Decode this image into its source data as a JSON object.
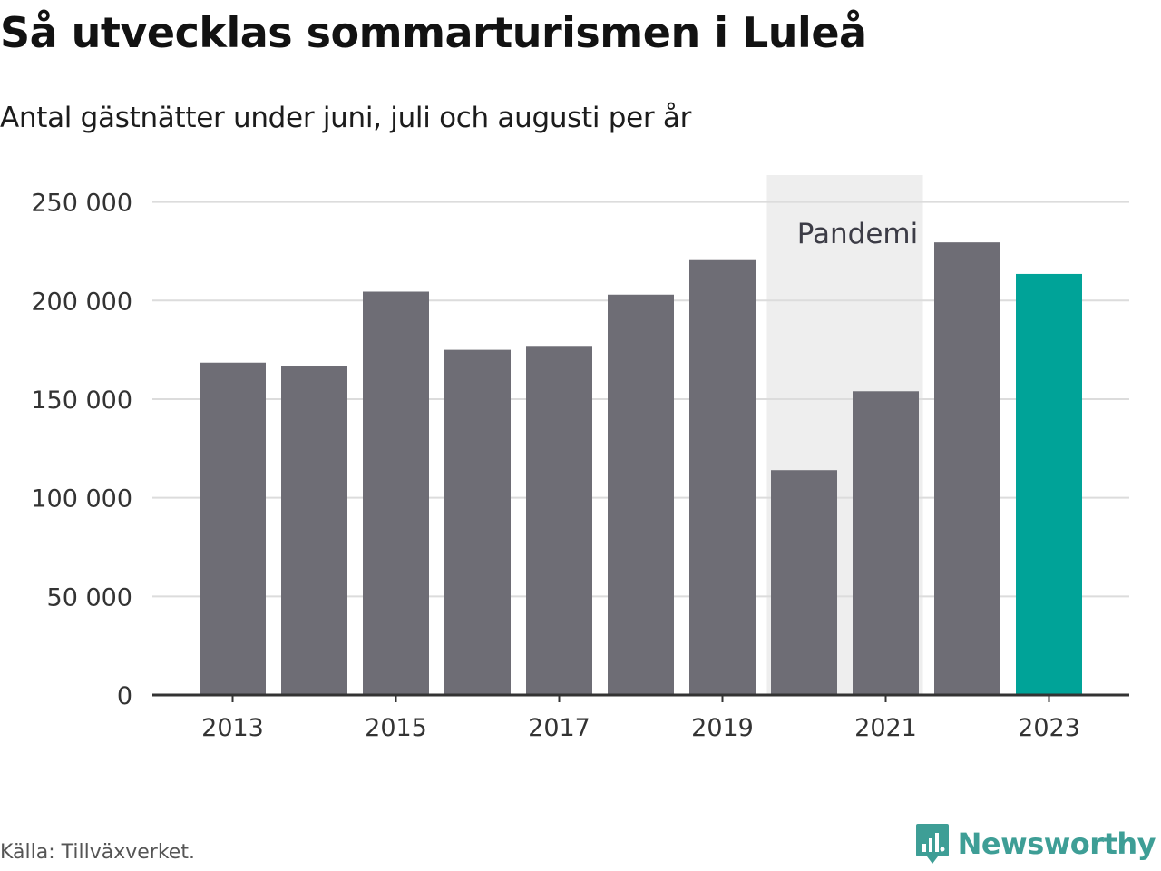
{
  "title": "Så utvecklas sommarturismen i Luleå",
  "subtitle": "Antal gästnätter under juni, juli och augusti per år",
  "source": "Källa: Tillväxverket.",
  "brand": {
    "name": "Newsworthy",
    "color": "#3e9e96",
    "icon": "bar-chart-bubble-icon"
  },
  "colors": {
    "bar": "#6e6d75",
    "highlight": "#00a398",
    "pandemic_band": "#eeeeee",
    "grid": "#dcdcdc",
    "axis": "#333333"
  },
  "chart_data": {
    "type": "bar",
    "categories": [
      "2013",
      "2014",
      "2015",
      "2016",
      "2017",
      "2018",
      "2019",
      "2020",
      "2021",
      "2022",
      "2023"
    ],
    "values": [
      168500,
      167000,
      204500,
      175000,
      177000,
      203000,
      220500,
      114000,
      154000,
      229500,
      213500
    ],
    "highlight_category": "2023",
    "x_tick_labels": [
      "2013",
      "2015",
      "2017",
      "2019",
      "2021",
      "2023"
    ],
    "y_ticks": [
      0,
      50000,
      100000,
      150000,
      200000,
      250000
    ],
    "y_tick_labels": [
      "0",
      "50 000",
      "100 000",
      "150 000",
      "200 000",
      "250 000"
    ],
    "ylim": [
      0,
      265000
    ],
    "grid": true,
    "annotation": {
      "label": "Pandemi",
      "from_category": "2020",
      "to_category": "2021"
    }
  }
}
